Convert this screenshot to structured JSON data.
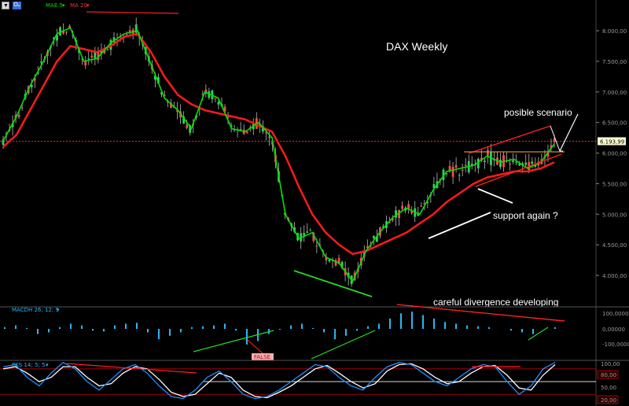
{
  "toolbar": {
    "menu_icon": "chevron-down-icon",
    "logo_text": "O₀"
  },
  "indicators": {
    "ma_short": "MAE 5",
    "ma_long": "MA 20",
    "macd": "MACDH 26; 12; 9",
    "pks": "PKS 14; 5; 5"
  },
  "colors": {
    "candle_up": "#2fd35a",
    "candle_down": "#ff4a4a",
    "ma_short": "#00e000",
    "ma_long": "#ff1a1a",
    "macd": "#29b6f6",
    "stoch_k": "#1e90ff",
    "stoch_d": "#ffffff",
    "trend_red": "#ff2020",
    "trend_green": "#22dd22",
    "orange": "#d18a3a"
  },
  "chart_data": {
    "type": "line",
    "title": "DAX Weekly",
    "price_axis": [
      "8.000,00",
      "7.500,00",
      "7.000,00",
      "6.500,00",
      "6.000,00",
      "5.500,00",
      "5.000,00",
      "4.500,00",
      "4.000,00"
    ],
    "price_range": [
      3550,
      8400
    ],
    "last_price": "6.193,99",
    "series": [
      {
        "name": "MAE 5",
        "values": [
          6200,
          6600,
          7100,
          7500,
          7950,
          8050,
          7500,
          7550,
          7800,
          7950,
          8000,
          7450,
          6900,
          6700,
          6400,
          7000,
          6900,
          6400,
          6350,
          6500,
          6250,
          5000,
          4600,
          4700,
          4300,
          4200,
          3900,
          4400,
          4700,
          4950,
          5100,
          5000,
          5400,
          5700,
          5750,
          5800,
          5950,
          5850,
          5900,
          5750,
          5850,
          6150
        ]
      },
      {
        "name": "MA 20",
        "values": [
          6100,
          6300,
          6700,
          7100,
          7500,
          7750,
          7700,
          7650,
          7750,
          7900,
          7950,
          7650,
          7250,
          6950,
          6800,
          6700,
          6650,
          6600,
          6550,
          6450,
          6350,
          5950,
          5450,
          5000,
          4700,
          4500,
          4350,
          4400,
          4500,
          4600,
          4700,
          4850,
          5000,
          5200,
          5350,
          5500,
          5600,
          5650,
          5700,
          5700,
          5750,
          5850
        ]
      }
    ],
    "macd": {
      "axis": [
        "100,00000",
        "0,00000",
        "-100,00000"
      ],
      "values": [
        10,
        20,
        5,
        -30,
        -20,
        10,
        30,
        20,
        -10,
        -15,
        20,
        30,
        35,
        -20,
        -60,
        -40,
        -20,
        10,
        15,
        20,
        30,
        -10,
        -90,
        -70,
        -30,
        -5,
        20,
        30,
        5,
        -20,
        -60,
        -40,
        -10,
        15,
        30,
        60,
        90,
        100,
        80,
        60,
        40,
        30,
        20,
        15,
        10,
        0,
        -10,
        -20,
        -30,
        0,
        10
      ]
    },
    "pks": {
      "axis": [
        "100,00",
        "80,00",
        "50,00",
        "20,00"
      ],
      "k": [
        85,
        90,
        60,
        40,
        70,
        95,
        80,
        50,
        30,
        55,
        80,
        90,
        70,
        40,
        15,
        10,
        30,
        60,
        75,
        50,
        20,
        10,
        15,
        30,
        50,
        70,
        90,
        85,
        60,
        40,
        30,
        60,
        85,
        95,
        90,
        70,
        50,
        40,
        60,
        80,
        90,
        85,
        50,
        20,
        40,
        80,
        95
      ],
      "d": [
        80,
        85,
        70,
        50,
        60,
        85,
        85,
        60,
        40,
        45,
        70,
        85,
        80,
        55,
        25,
        15,
        20,
        45,
        70,
        60,
        30,
        15,
        12,
        25,
        40,
        60,
        80,
        88,
        70,
        50,
        35,
        45,
        75,
        90,
        92,
        80,
        60,
        45,
        50,
        70,
        85,
        88,
        65,
        35,
        30,
        65,
        90
      ]
    }
  },
  "annotations": {
    "title": "DAX Weekly",
    "scenario": "posible scenario",
    "support": "support again ?",
    "divergence": "careful  divergence developing",
    "false_tag": "FALSE"
  }
}
